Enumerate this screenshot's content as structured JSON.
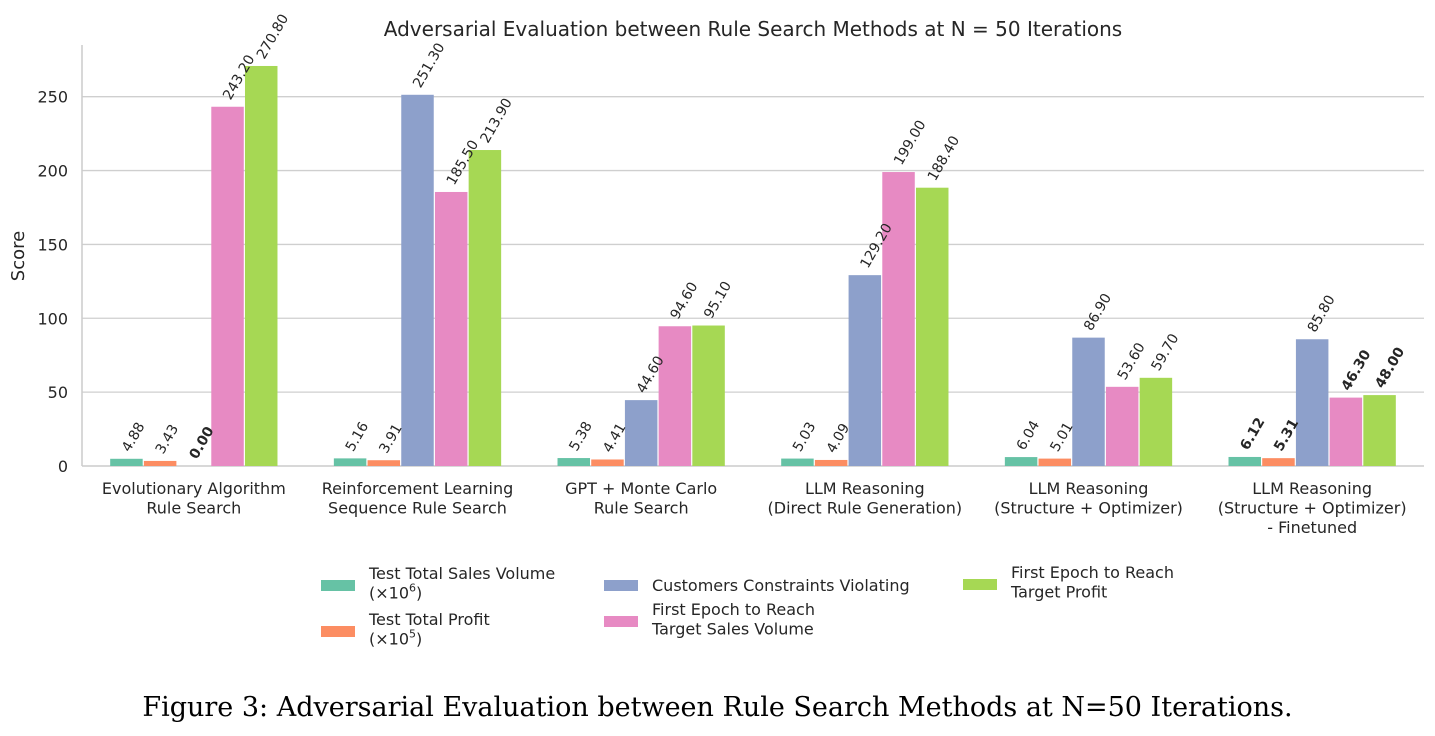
{
  "chart_data": {
    "type": "bar",
    "title": "Adversarial Evaluation between Rule Search Methods at N = 50 Iterations",
    "xlabel": "",
    "ylabel": "Score",
    "ylim": [
      0,
      285
    ],
    "yticks": [
      "0",
      "50",
      "100",
      "150",
      "200",
      "250"
    ],
    "grid": true,
    "legend_position": "bottom",
    "categories": [
      [
        "Evolutionary Algorithm",
        "Rule Search"
      ],
      [
        "Reinforcement Learning",
        "Sequence Rule Search"
      ],
      [
        "GPT + Monte Carlo",
        "Rule Search"
      ],
      [
        "LLM Reasoning",
        "(Direct Rule Generation)"
      ],
      [
        "LLM Reasoning",
        "(Structure + Optimizer)"
      ],
      [
        "LLM Reasoning",
        "(Structure + Optimizer)",
        "- Finetuned"
      ]
    ],
    "series": [
      {
        "name": "Test Total Sales Volume (×10^6)",
        "legend_lines": [
          "Test Total Sales Volume",
          "(×10",
          "6",
          ")"
        ],
        "color": "#66c2a5",
        "values": [
          4.88,
          5.16,
          5.38,
          5.03,
          6.04,
          6.12
        ],
        "labels": [
          "4.88",
          "5.16",
          "5.38",
          "5.03",
          "6.04",
          "6.12"
        ],
        "bold": [
          false,
          false,
          false,
          false,
          false,
          true
        ]
      },
      {
        "name": "Test Total Profit (×10^5)",
        "legend_lines": [
          "Test Total Profit",
          "(×10",
          "5",
          ")"
        ],
        "color": "#fc8d62",
        "values": [
          3.43,
          3.91,
          4.41,
          4.09,
          5.01,
          5.31
        ],
        "labels": [
          "3.43",
          "3.91",
          "4.41",
          "4.09",
          "5.01",
          "5.31"
        ],
        "bold": [
          false,
          false,
          false,
          false,
          false,
          true
        ]
      },
      {
        "name": "Customers Constraints Violating",
        "legend_lines": [
          "Customers Constraints Violating"
        ],
        "color": "#8da0cb",
        "values": [
          0.0,
          251.3,
          44.6,
          129.2,
          86.9,
          85.8
        ],
        "labels": [
          "0.00",
          "251.30",
          "44.60",
          "129.20",
          "86.90",
          "85.80"
        ],
        "bold": [
          true,
          false,
          false,
          false,
          false,
          false
        ]
      },
      {
        "name": "First Epoch to Reach Target Sales Volume",
        "legend_lines": [
          "First Epoch to Reach",
          "Target Sales Volume"
        ],
        "color": "#e78ac3",
        "values": [
          243.2,
          185.5,
          94.6,
          199.0,
          53.6,
          46.3
        ],
        "labels": [
          "243.20",
          "185.50",
          "94.60",
          "199.00",
          "53.60",
          "46.30"
        ],
        "bold": [
          false,
          false,
          false,
          false,
          false,
          true
        ]
      },
      {
        "name": "First Epoch to Reach Target Profit",
        "legend_lines": [
          "First Epoch to Reach",
          "Target Profit"
        ],
        "color": "#a6d854",
        "values": [
          270.8,
          213.9,
          95.1,
          188.4,
          59.7,
          48.0
        ],
        "labels": [
          "270.80",
          "213.90",
          "95.10",
          "188.40",
          "59.70",
          "48.00"
        ],
        "bold": [
          false,
          false,
          false,
          false,
          false,
          true
        ]
      }
    ]
  },
  "caption": "Figure 3: Adversarial Evaluation between Rule Search Methods at N=50 Iterations."
}
